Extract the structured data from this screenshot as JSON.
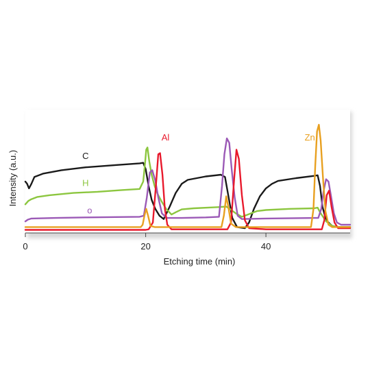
{
  "chart_data": {
    "type": "line",
    "title": "",
    "xlabel": "Etching time (min)",
    "ylabel": "Intensity (a.u.)",
    "xlim": [
      0,
      54
    ],
    "ylim": [
      0,
      100
    ],
    "x_ticks": [
      0,
      20,
      40
    ],
    "x_tick_labels": [
      "0",
      "20",
      "40"
    ],
    "grid": false,
    "legend": "inline labels",
    "series": [
      {
        "name": "C",
        "color": "#1a1a1a",
        "points": [
          [
            0,
            44
          ],
          [
            0.3,
            42
          ],
          [
            0.6,
            38
          ],
          [
            1,
            42
          ],
          [
            1.5,
            48
          ],
          [
            3,
            51
          ],
          [
            6,
            54
          ],
          [
            10,
            56.5
          ],
          [
            15,
            58.5
          ],
          [
            19,
            60
          ],
          [
            19.6,
            60.5
          ],
          [
            20,
            55
          ],
          [
            20.5,
            40
          ],
          [
            21,
            28
          ],
          [
            21.6,
            20
          ],
          [
            22.3,
            14
          ],
          [
            23,
            11
          ],
          [
            24,
            22
          ],
          [
            25,
            34
          ],
          [
            26,
            42
          ],
          [
            27,
            45.5
          ],
          [
            30,
            48.5
          ],
          [
            32.5,
            50
          ],
          [
            33.2,
            48
          ],
          [
            33.8,
            30
          ],
          [
            34.4,
            12
          ],
          [
            35.2,
            4
          ],
          [
            36.5,
            3
          ],
          [
            37.2,
            8
          ],
          [
            38,
            20
          ],
          [
            39,
            31
          ],
          [
            40,
            38
          ],
          [
            41,
            42
          ],
          [
            42,
            44.5
          ],
          [
            45,
            47
          ],
          [
            48,
            49
          ],
          [
            48.6,
            49.5
          ],
          [
            49,
            40
          ],
          [
            49.4,
            22
          ],
          [
            50,
            10
          ],
          [
            51,
            5
          ],
          [
            52,
            4
          ],
          [
            54,
            4
          ]
        ]
      },
      {
        "name": "H",
        "color": "#8cc63f",
        "points": [
          [
            0,
            24
          ],
          [
            0.5,
            27
          ],
          [
            1,
            28.5
          ],
          [
            2,
            30.5
          ],
          [
            4,
            32
          ],
          [
            8,
            34
          ],
          [
            12,
            35
          ],
          [
            16,
            36.5
          ],
          [
            19,
            37.5
          ],
          [
            19.6,
            44
          ],
          [
            19.9,
            60
          ],
          [
            20.1,
            72
          ],
          [
            20.3,
            74
          ],
          [
            20.6,
            62
          ],
          [
            21,
            50
          ],
          [
            21.5,
            40
          ],
          [
            22,
            33
          ],
          [
            22.6,
            27
          ],
          [
            23.4,
            20
          ],
          [
            24.3,
            15
          ],
          [
            25,
            17
          ],
          [
            26,
            19.5
          ],
          [
            28,
            20.5
          ],
          [
            32,
            21.5
          ],
          [
            33.4,
            22
          ],
          [
            34,
            20
          ],
          [
            35,
            16
          ],
          [
            36,
            13
          ],
          [
            37,
            15
          ],
          [
            38.5,
            18
          ],
          [
            40,
            19
          ],
          [
            44,
            20
          ],
          [
            48,
            20.5
          ],
          [
            48.6,
            21
          ],
          [
            49,
            17
          ],
          [
            50,
            9
          ],
          [
            51,
            5
          ],
          [
            52,
            4
          ],
          [
            54,
            4
          ]
        ]
      },
      {
        "name": "O",
        "color": "#9b59b6",
        "points": [
          [
            0,
            9
          ],
          [
            0.4,
            10.5
          ],
          [
            1,
            11.5
          ],
          [
            5,
            12
          ],
          [
            10,
            12.5
          ],
          [
            15,
            12.8
          ],
          [
            19,
            13
          ],
          [
            19.7,
            14
          ],
          [
            20.2,
            30
          ],
          [
            20.7,
            52
          ],
          [
            21.1,
            54
          ],
          [
            21.6,
            45
          ],
          [
            22.1,
            30
          ],
          [
            22.7,
            16
          ],
          [
            23.5,
            12
          ],
          [
            26,
            12
          ],
          [
            30,
            12.5
          ],
          [
            32.2,
            13
          ],
          [
            32.7,
            40
          ],
          [
            33.1,
            68
          ],
          [
            33.5,
            82
          ],
          [
            33.9,
            78
          ],
          [
            34.3,
            55
          ],
          [
            34.8,
            30
          ],
          [
            35.3,
            14
          ],
          [
            36,
            11
          ],
          [
            40,
            11.5
          ],
          [
            48,
            12
          ],
          [
            48.7,
            12
          ],
          [
            49.2,
            20
          ],
          [
            49.6,
            36
          ],
          [
            50,
            46
          ],
          [
            50.4,
            44
          ],
          [
            50.8,
            32
          ],
          [
            51.3,
            16
          ],
          [
            51.8,
            8
          ],
          [
            52.5,
            6
          ],
          [
            54,
            6
          ]
        ]
      },
      {
        "name": "Al",
        "color": "#e8192c",
        "points": [
          [
            0,
            1.5
          ],
          [
            10,
            1.5
          ],
          [
            20,
            1.5
          ],
          [
            20.5,
            2
          ],
          [
            21.2,
            8
          ],
          [
            21.7,
            40
          ],
          [
            22.1,
            68
          ],
          [
            22.4,
            69
          ],
          [
            22.8,
            50
          ],
          [
            23.2,
            20
          ],
          [
            23.6,
            6
          ],
          [
            24.3,
            2
          ],
          [
            30,
            2
          ],
          [
            33.6,
            2
          ],
          [
            34.2,
            8
          ],
          [
            34.7,
            45
          ],
          [
            35.1,
            72
          ],
          [
            35.5,
            64
          ],
          [
            36,
            32
          ],
          [
            36.5,
            10
          ],
          [
            37.2,
            3
          ],
          [
            40,
            2
          ],
          [
            49.3,
            2
          ],
          [
            49.7,
            10
          ],
          [
            50.1,
            32
          ],
          [
            50.5,
            36
          ],
          [
            50.9,
            22
          ],
          [
            51.4,
            8
          ],
          [
            52,
            3
          ],
          [
            54,
            3
          ]
        ]
      },
      {
        "name": "Zn",
        "color": "#e8a020",
        "points": [
          [
            0,
            4
          ],
          [
            10,
            4
          ],
          [
            19.2,
            4
          ],
          [
            19.5,
            6
          ],
          [
            19.8,
            14
          ],
          [
            20.1,
            20
          ],
          [
            20.4,
            14
          ],
          [
            20.8,
            5
          ],
          [
            21.5,
            4
          ],
          [
            30,
            4
          ],
          [
            32.6,
            4
          ],
          [
            33,
            14
          ],
          [
            33.4,
            31
          ],
          [
            33.8,
            20
          ],
          [
            34.2,
            7
          ],
          [
            35,
            4
          ],
          [
            40,
            4
          ],
          [
            47.5,
            4
          ],
          [
            47.9,
            20
          ],
          [
            48.2,
            58
          ],
          [
            48.5,
            88
          ],
          [
            48.8,
            94
          ],
          [
            49.1,
            80
          ],
          [
            49.5,
            46
          ],
          [
            49.9,
            18
          ],
          [
            50.4,
            6
          ],
          [
            51,
            4
          ],
          [
            54,
            4
          ]
        ]
      }
    ],
    "annotations": [
      {
        "text": "C",
        "series": "C",
        "x": 10,
        "y": 64
      },
      {
        "text": "H",
        "series": "H",
        "x": 10,
        "y": 40
      },
      {
        "text": "o",
        "series": "O",
        "x": 10.7,
        "y": 16
      },
      {
        "text": "Al",
        "series": "Al",
        "x": 23.3,
        "y": 80
      },
      {
        "text": "Zn",
        "series": "Zn",
        "x": 47.3,
        "y": 80
      }
    ]
  }
}
